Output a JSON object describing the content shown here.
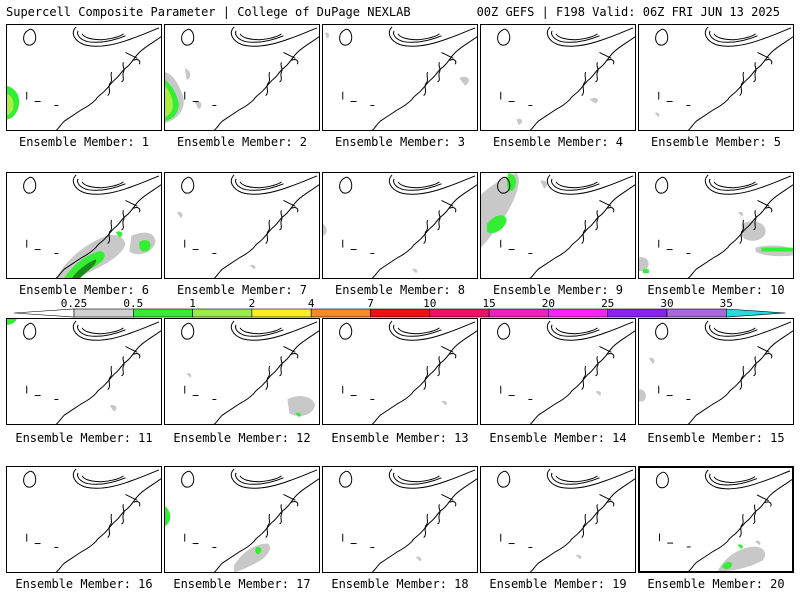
{
  "header": {
    "left_title": "Supercell Composite Parameter | College of DuPage NEXLAB",
    "right_title": "00Z GEFS | F198 Valid: 06Z FRI JUN 13 2025"
  },
  "members": [
    {
      "label": "Ensemble Member: 1"
    },
    {
      "label": "Ensemble Member: 2"
    },
    {
      "label": "Ensemble Member: 3"
    },
    {
      "label": "Ensemble Member: 4"
    },
    {
      "label": "Ensemble Member: 5"
    },
    {
      "label": "Ensemble Member: 6"
    },
    {
      "label": "Ensemble Member: 7"
    },
    {
      "label": "Ensemble Member: 8"
    },
    {
      "label": "Ensemble Member: 9"
    },
    {
      "label": "Ensemble Member: 10"
    },
    {
      "label": "Ensemble Member: 11"
    },
    {
      "label": "Ensemble Member: 12"
    },
    {
      "label": "Ensemble Member: 13"
    },
    {
      "label": "Ensemble Member: 14"
    },
    {
      "label": "Ensemble Member: 15"
    },
    {
      "label": "Ensemble Member: 16"
    },
    {
      "label": "Ensemble Member: 17"
    },
    {
      "label": "Ensemble Member: 18"
    },
    {
      "label": "Ensemble Member: 19"
    },
    {
      "label": "Ensemble Member: 20"
    }
  ],
  "selected_member": 20,
  "colorbar": {
    "ticks": [
      "0.25",
      "0.5",
      "1",
      "2",
      "4",
      "7",
      "10",
      "15",
      "20",
      "25",
      "30",
      "35"
    ],
    "colors": [
      "#d0d0d0",
      "#33ee33",
      "#99ee44",
      "#ffee22",
      "#ff8822",
      "#ee1111",
      "#ee1166",
      "#ee22bb",
      "#ff22ff",
      "#8822ee",
      "#aa66dd",
      "#22dddd"
    ]
  },
  "colors": {
    "coast": "#000000",
    "scp_low": "#c8c8c8",
    "scp_mid": "#44ee44",
    "scp_high": "#aaee44"
  }
}
